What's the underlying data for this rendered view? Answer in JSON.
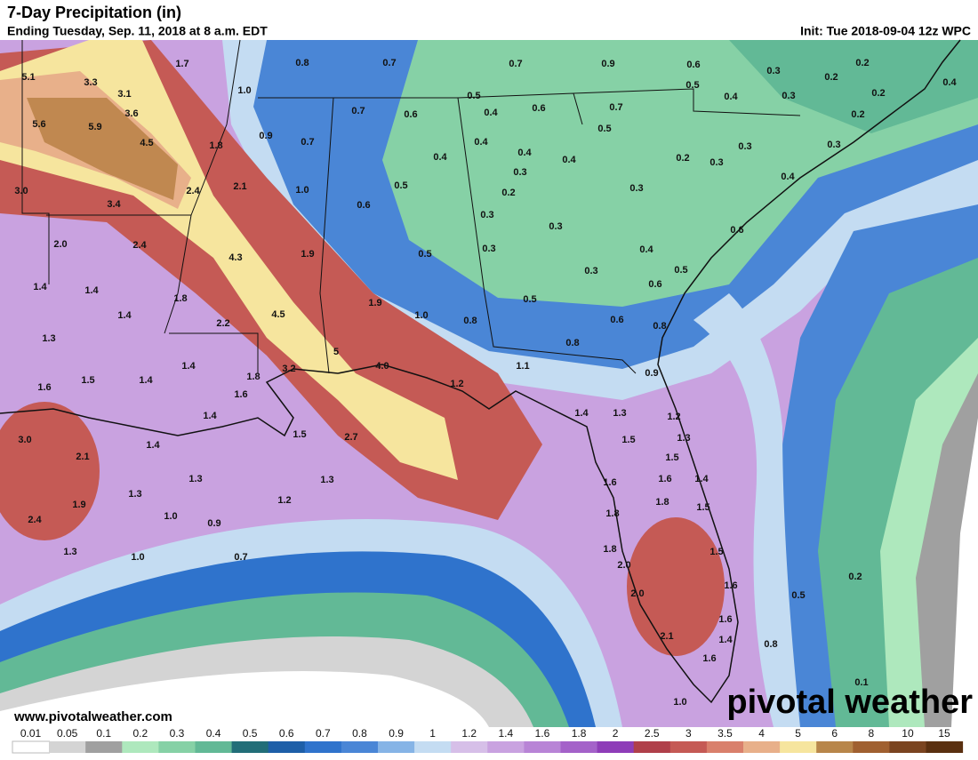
{
  "header": {
    "title": "7-Day Precipitation (in)",
    "subtitle": "Ending Tuesday, Sep. 11, 2018 at 8 a.m. EDT",
    "init": "Init: Tue 2018-09-04 12z WPC"
  },
  "map": {
    "labels": [
      5.1,
      3.3,
      3.1,
      1.7,
      0.8,
      0.7,
      0.7,
      0.9,
      0.6,
      0.3,
      0.2,
      0.2,
      0.4,
      {
        "value": 1,
        "label": "1.0"
      },
      3.6,
      5.6,
      5.9,
      0.7,
      0.6,
      0.5,
      0.4,
      0.6,
      0.7,
      0.5,
      0.4,
      0.3,
      0.2,
      0.2,
      4.5,
      1.8,
      0.9,
      0.7,
      0.4,
      0.5,
      0.4,
      0.4,
      0.3,
      0.3,
      0.4,
      0.3,
      0.2,
      0.3,
      {
        "value": 3,
        "label": "3.0"
      },
      3.4,
      2.4,
      2.1,
      {
        "value": 1,
        "label": "1.0"
      },
      0.6,
      0.5,
      0.2,
      0.3,
      0.4,
      {
        "value": 2,
        "label": "2.0"
      },
      2.4,
      4.3,
      1.9,
      0.3,
      0.3,
      0.5,
      0.3,
      0.4,
      0.6,
      0.5,
      1.4,
      1.4,
      1.8,
      1.4,
      2.2,
      4.5,
      1.9,
      {
        "value": 1,
        "label": "1.0"
      },
      0.8,
      0.5,
      0.3,
      0.6,
      0.6,
      0.8,
      0.8,
      1.3,
      5,
      1.4,
      3.2,
      1.8,
      {
        "value": 4,
        "label": "4.0"
      },
      1.1,
      0.9,
      1.2,
      1.6,
      1.5,
      1.4,
      1.6,
      1.4,
      1.4,
      1.3,
      1.2,
      {
        "value": 3,
        "label": "3.0"
      },
      1.5,
      2.7,
      1.4,
      1.5,
      1.3,
      2.1,
      1.3,
      1.3,
      1.5,
      1.6,
      1.6,
      1.4,
      1.3,
      1.2,
      1.9,
      1.8,
      1.5,
      {
        "value": 1,
        "label": "1.0"
      },
      0.9,
      1.8,
      2.4,
      1.3,
      {
        "value": 1,
        "label": "1.0"
      },
      0.7,
      1.8,
      1.5,
      {
        "value": 2,
        "label": "2.0"
      },
      1.6,
      0.5,
      0.2,
      {
        "value": 2,
        "label": "2.0"
      },
      1.6,
      2.1,
      1.4,
      0.8,
      1.6,
      {
        "value": 1,
        "label": "1.0"
      },
      0.1
    ],
    "website": "www.pivotalweather.com",
    "brand": "pivotal weather"
  },
  "legend": {
    "ticks": [
      0.01,
      0.05,
      0.1,
      0.2,
      0.3,
      0.4,
      0.5,
      0.6,
      0.7,
      0.8,
      0.9,
      1,
      1.2,
      1.4,
      1.6,
      1.8,
      2,
      2.5,
      3,
      3.5,
      4,
      5,
      6,
      8,
      10,
      15
    ],
    "colors": [
      "#ffffff",
      "#d4d4d4",
      "#a0a0a0",
      "#aee8bd",
      "#86d1a6",
      "#62b996",
      "#226e78",
      "#1e5fa8",
      "#2f73cc",
      "#4a86d6",
      "#86b4e6",
      "#c4dcf2",
      "#d6bfe8",
      "#c9a2e0",
      "#b884d6",
      "#a462c9",
      "#8e3db8",
      "#b0404a",
      "#c55a55",
      "#d9806c",
      "#e8b08a",
      "#f6e59e",
      "#b8864a",
      "#a06030",
      "#7a4420",
      "#5a3010"
    ]
  }
}
